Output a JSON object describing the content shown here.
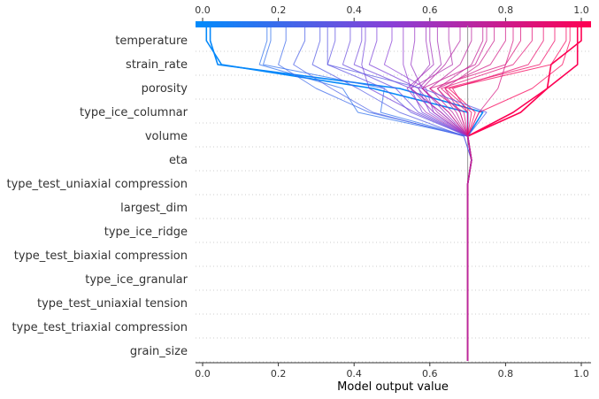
{
  "chart_data": {
    "type": "line",
    "title": "",
    "xlabel": "Model output value",
    "ylabel": "",
    "xlim": [
      0.0,
      1.0
    ],
    "features": [
      "temperature",
      "strain_rate",
      "porosity",
      "type_ice_columnar",
      "volume",
      "eta",
      "type_test_uniaxial compression",
      "largest_dim",
      "type_ice_ridge",
      "type_test_biaxial compression",
      "type_ice_granular",
      "type_test_uniaxial tension",
      "type_test_triaxial compression",
      "grain_size"
    ],
    "x_ticks": [
      "0.0",
      "0.2",
      "0.4",
      "0.6",
      "0.8",
      "1.0"
    ],
    "top_ticks": [
      "0.0",
      "0.2",
      "0.4",
      "0.6",
      "0.8",
      "1.0"
    ],
    "base_value": 0.7,
    "colormap": {
      "low": "#008bfb",
      "mid": "#8a3fd6",
      "high": "#ff0051"
    },
    "series": [
      {
        "final": 0.01,
        "values": [
          0.7,
          0.7,
          0.7,
          0.7,
          0.7,
          0.7,
          0.7,
          0.7,
          0.71,
          0.7,
          0.7,
          0.45,
          0.05,
          0.01
        ]
      },
      {
        "final": 0.02,
        "values": [
          0.7,
          0.7,
          0.7,
          0.7,
          0.7,
          0.7,
          0.7,
          0.7,
          0.71,
          0.7,
          0.74,
          0.52,
          0.04,
          0.02
        ]
      },
      {
        "final": 0.18,
        "values": [
          0.7,
          0.7,
          0.7,
          0.7,
          0.7,
          0.7,
          0.7,
          0.7,
          0.71,
          0.7,
          0.47,
          0.48,
          0.16,
          0.18
        ]
      },
      {
        "final": 0.17,
        "values": [
          0.7,
          0.7,
          0.7,
          0.7,
          0.7,
          0.7,
          0.7,
          0.7,
          0.71,
          0.7,
          0.41,
          0.37,
          0.15,
          0.17
        ]
      },
      {
        "final": 0.22,
        "values": [
          0.7,
          0.7,
          0.7,
          0.7,
          0.7,
          0.7,
          0.7,
          0.7,
          0.71,
          0.7,
          0.44,
          0.3,
          0.2,
          0.22
        ]
      },
      {
        "final": 0.27,
        "values": [
          0.7,
          0.7,
          0.7,
          0.7,
          0.7,
          0.7,
          0.7,
          0.7,
          0.71,
          0.69,
          0.45,
          0.34,
          0.24,
          0.27
        ]
      },
      {
        "final": 0.31,
        "values": [
          0.7,
          0.7,
          0.7,
          0.7,
          0.7,
          0.7,
          0.7,
          0.7,
          0.71,
          0.69,
          0.52,
          0.41,
          0.29,
          0.31
        ]
      },
      {
        "final": 0.35,
        "values": [
          0.7,
          0.7,
          0.7,
          0.7,
          0.7,
          0.7,
          0.7,
          0.7,
          0.71,
          0.7,
          0.55,
          0.48,
          0.33,
          0.35
        ]
      },
      {
        "final": 0.39,
        "values": [
          0.7,
          0.7,
          0.7,
          0.7,
          0.7,
          0.7,
          0.7,
          0.7,
          0.71,
          0.7,
          0.57,
          0.51,
          0.37,
          0.39
        ]
      },
      {
        "final": 0.42,
        "values": [
          0.7,
          0.7,
          0.7,
          0.7,
          0.7,
          0.7,
          0.7,
          0.7,
          0.71,
          0.7,
          0.58,
          0.55,
          0.4,
          0.42
        ]
      },
      {
        "final": 0.46,
        "values": [
          0.7,
          0.7,
          0.7,
          0.7,
          0.7,
          0.7,
          0.7,
          0.7,
          0.71,
          0.7,
          0.6,
          0.57,
          0.44,
          0.46
        ]
      },
      {
        "final": 0.5,
        "values": [
          0.7,
          0.7,
          0.7,
          0.7,
          0.7,
          0.7,
          0.7,
          0.7,
          0.71,
          0.7,
          0.61,
          0.59,
          0.48,
          0.5
        ]
      },
      {
        "final": 0.53,
        "values": [
          0.7,
          0.7,
          0.7,
          0.7,
          0.7,
          0.7,
          0.7,
          0.7,
          0.71,
          0.7,
          0.63,
          0.55,
          0.53,
          0.53
        ]
      },
      {
        "final": 0.56,
        "values": [
          0.7,
          0.7,
          0.7,
          0.7,
          0.7,
          0.7,
          0.7,
          0.7,
          0.71,
          0.7,
          0.64,
          0.58,
          0.55,
          0.56
        ]
      },
      {
        "final": 0.59,
        "values": [
          0.7,
          0.7,
          0.7,
          0.7,
          0.7,
          0.7,
          0.7,
          0.7,
          0.71,
          0.7,
          0.61,
          0.55,
          0.6,
          0.59
        ]
      },
      {
        "final": 0.62,
        "values": [
          0.7,
          0.7,
          0.7,
          0.7,
          0.7,
          0.7,
          0.7,
          0.7,
          0.71,
          0.7,
          0.62,
          0.57,
          0.63,
          0.62
        ]
      },
      {
        "final": 0.65,
        "values": [
          0.7,
          0.7,
          0.7,
          0.7,
          0.7,
          0.7,
          0.7,
          0.7,
          0.71,
          0.7,
          0.63,
          0.55,
          0.66,
          0.65
        ]
      },
      {
        "final": 0.68,
        "values": [
          0.7,
          0.7,
          0.7,
          0.7,
          0.7,
          0.7,
          0.7,
          0.7,
          0.71,
          0.7,
          0.65,
          0.58,
          0.64,
          0.68
        ]
      },
      {
        "final": 0.71,
        "values": [
          0.7,
          0.7,
          0.7,
          0.7,
          0.7,
          0.7,
          0.7,
          0.7,
          0.71,
          0.7,
          0.66,
          0.6,
          0.68,
          0.71
        ]
      },
      {
        "final": 0.74,
        "values": [
          0.7,
          0.7,
          0.7,
          0.7,
          0.7,
          0.7,
          0.7,
          0.7,
          0.71,
          0.7,
          0.67,
          0.62,
          0.71,
          0.74
        ]
      },
      {
        "final": 0.77,
        "values": [
          0.7,
          0.7,
          0.7,
          0.7,
          0.7,
          0.7,
          0.7,
          0.7,
          0.71,
          0.7,
          0.68,
          0.64,
          0.73,
          0.77
        ]
      },
      {
        "final": 0.8,
        "values": [
          0.7,
          0.7,
          0.7,
          0.7,
          0.7,
          0.7,
          0.7,
          0.7,
          0.71,
          0.7,
          0.68,
          0.62,
          0.76,
          0.8
        ]
      },
      {
        "final": 0.84,
        "values": [
          0.7,
          0.7,
          0.7,
          0.7,
          0.7,
          0.7,
          0.7,
          0.7,
          0.71,
          0.7,
          0.69,
          0.6,
          0.8,
          0.84
        ]
      },
      {
        "final": 0.87,
        "values": [
          0.7,
          0.7,
          0.7,
          0.7,
          0.7,
          0.7,
          0.7,
          0.7,
          0.71,
          0.7,
          0.7,
          0.63,
          0.82,
          0.87
        ]
      },
      {
        "final": 0.9,
        "values": [
          0.7,
          0.7,
          0.7,
          0.7,
          0.7,
          0.7,
          0.7,
          0.7,
          0.71,
          0.7,
          0.7,
          0.66,
          0.86,
          0.9
        ]
      },
      {
        "final": 0.93,
        "values": [
          0.7,
          0.7,
          0.7,
          0.7,
          0.7,
          0.7,
          0.7,
          0.7,
          0.71,
          0.7,
          0.71,
          0.64,
          0.89,
          0.93
        ]
      },
      {
        "final": 0.96,
        "values": [
          0.7,
          0.7,
          0.7,
          0.7,
          0.7,
          0.7,
          0.7,
          0.7,
          0.71,
          0.7,
          0.72,
          0.65,
          0.92,
          0.96
        ]
      },
      {
        "final": 0.99,
        "values": [
          0.7,
          0.7,
          0.7,
          0.7,
          0.7,
          0.7,
          0.7,
          0.7,
          0.71,
          0.7,
          0.82,
          0.91,
          0.99,
          0.99
        ]
      },
      {
        "final": 1.0,
        "values": [
          0.7,
          0.7,
          0.7,
          0.7,
          0.7,
          0.7,
          0.7,
          0.7,
          0.71,
          0.7,
          0.84,
          0.91,
          0.92,
          1.0
        ]
      },
      {
        "final": 0.97,
        "values": [
          0.7,
          0.7,
          0.7,
          0.7,
          0.7,
          0.7,
          0.7,
          0.7,
          0.71,
          0.7,
          0.73,
          0.87,
          0.95,
          0.97
        ]
      },
      {
        "final": 0.82,
        "values": [
          0.7,
          0.7,
          0.7,
          0.7,
          0.7,
          0.7,
          0.7,
          0.7,
          0.71,
          0.7,
          0.73,
          0.78,
          0.8,
          0.82
        ]
      },
      {
        "final": 0.33,
        "values": [
          0.7,
          0.7,
          0.7,
          0.7,
          0.7,
          0.7,
          0.7,
          0.7,
          0.71,
          0.7,
          0.75,
          0.58,
          0.33,
          0.33
        ]
      },
      {
        "final": 0.43,
        "values": [
          0.7,
          0.7,
          0.7,
          0.7,
          0.7,
          0.7,
          0.7,
          0.7,
          0.71,
          0.7,
          0.56,
          0.44,
          0.42,
          0.43
        ]
      },
      {
        "final": 0.6,
        "values": [
          0.7,
          0.7,
          0.7,
          0.7,
          0.7,
          0.7,
          0.7,
          0.7,
          0.71,
          0.7,
          0.59,
          0.54,
          0.61,
          0.6
        ]
      },
      {
        "final": 0.75,
        "values": [
          0.7,
          0.7,
          0.7,
          0.7,
          0.7,
          0.7,
          0.7,
          0.7,
          0.71,
          0.7,
          0.65,
          0.58,
          0.72,
          0.75
        ]
      }
    ]
  }
}
